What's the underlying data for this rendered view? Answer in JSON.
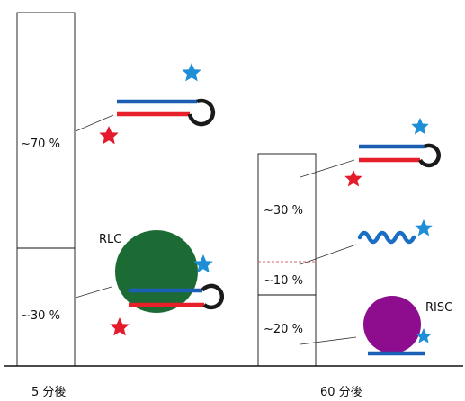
{
  "colors": {
    "blue_strand": "#1a5fb4",
    "red_strand": "#e8202a",
    "loop": "#1a1a1a",
    "red_star": "#e31b2c",
    "blue_star": "#1e8fd6",
    "rlc_body": "#1c6b35",
    "risc_body": "#8e0d8e",
    "wave": "#1a6fc4",
    "dashed_line": "#e06070",
    "axis": "#111111"
  },
  "icons": [
    "red-star-icon",
    "blue-star-icon",
    "hairpin-duplex-icon",
    "wave-strand-icon",
    "rlc-complex-icon",
    "risc-complex-icon"
  ],
  "columns": [
    {
      "x_label": "5 分後",
      "segments": [
        {
          "label": "~70 %",
          "fraction": 0.7
        },
        {
          "label": "~30 %",
          "fraction": 0.3
        }
      ]
    },
    {
      "x_label": "60 分後",
      "segments": [
        {
          "label": "~30 %",
          "fraction": 0.3
        },
        {
          "label": "~10 %",
          "fraction": 0.1
        },
        {
          "label": "~20 %",
          "fraction": 0.2
        }
      ]
    }
  ],
  "complex_labels": {
    "rlc": "RLC",
    "risc": "RISC"
  }
}
